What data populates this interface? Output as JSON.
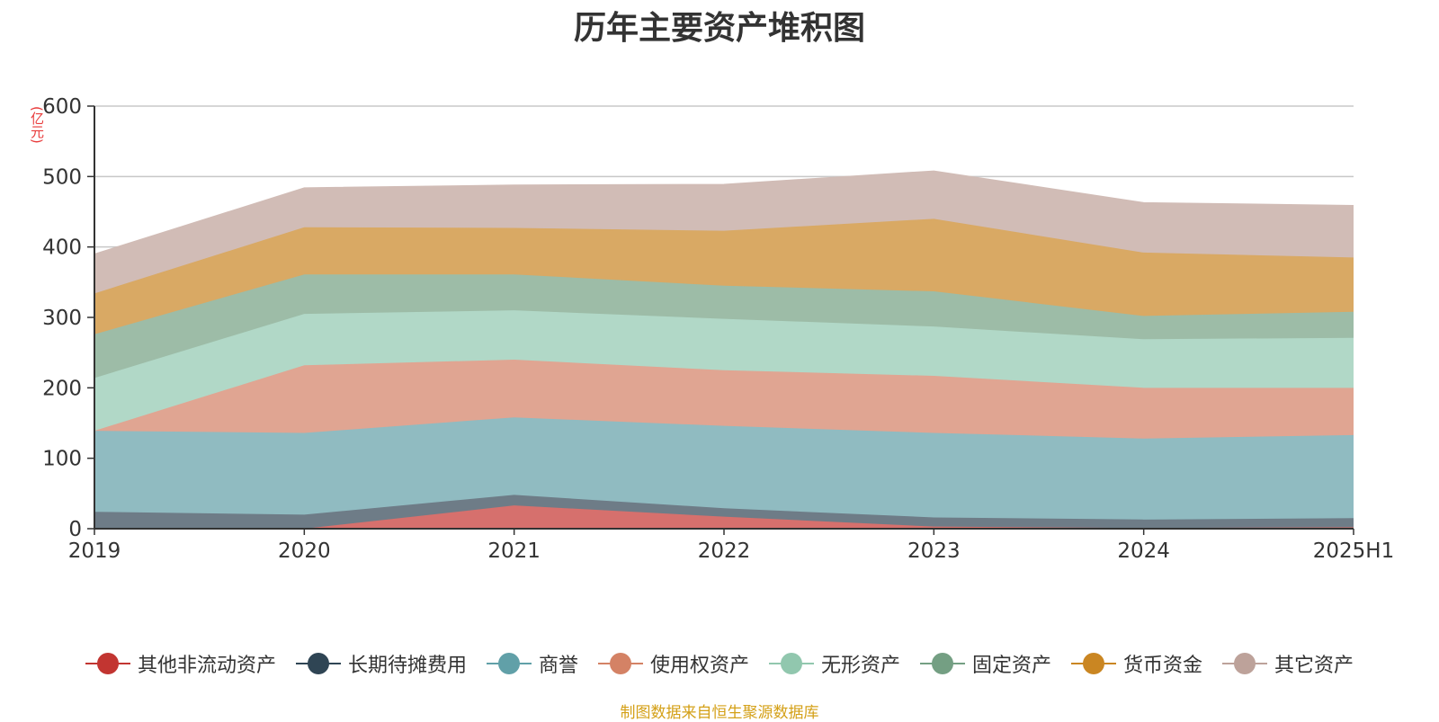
{
  "title": "历年主要资产堆积图",
  "unit": "(亿元)",
  "source": "制图数据来自恒生聚源数据库",
  "chart_data": {
    "type": "area",
    "stacked": true,
    "categories": [
      "2019",
      "2020",
      "2021",
      "2022",
      "2023",
      "2024",
      "2025H1"
    ],
    "ylim": [
      0,
      600
    ],
    "yticks": [
      0,
      100,
      200,
      300,
      400,
      500,
      600
    ],
    "grid": true,
    "legend_position": "bottom",
    "series": [
      {
        "name": "其他非流动资产",
        "color": "#c23531",
        "fill": "#d6706d",
        "values": [
          0,
          0,
          33,
          17,
          3,
          1,
          2
        ]
      },
      {
        "name": "长期待摊费用",
        "color": "#2f4554",
        "fill": "#6e7c87",
        "values": [
          24,
          20,
          15,
          12,
          13,
          12,
          13
        ]
      },
      {
        "name": "商誉",
        "color": "#61a0a8",
        "fill": "#90bbc1",
        "values": [
          115,
          116,
          110,
          117,
          120,
          115,
          118
        ]
      },
      {
        "name": "使用权资产",
        "color": "#d48265",
        "fill": "#e0a592",
        "values": [
          0,
          96,
          82,
          79,
          81,
          72,
          67
        ]
      },
      {
        "name": "无形资产",
        "color": "#91c7ae",
        "fill": "#b1d8c7",
        "values": [
          75,
          73,
          70,
          73,
          70,
          69,
          71
        ]
      },
      {
        "name": "固定资产",
        "color": "#749f83",
        "fill": "#9dbca7",
        "values": [
          62,
          56,
          51,
          47,
          50,
          33,
          37
        ]
      },
      {
        "name": "货币资金",
        "color": "#ca8622",
        "fill": "#d9a964",
        "values": [
          58,
          67,
          66,
          78,
          103,
          90,
          77
        ]
      },
      {
        "name": "其它资产",
        "color": "#bda29a",
        "fill": "#d1bcb6",
        "values": [
          56,
          56,
          61,
          66,
          68,
          71,
          74
        ]
      }
    ]
  }
}
